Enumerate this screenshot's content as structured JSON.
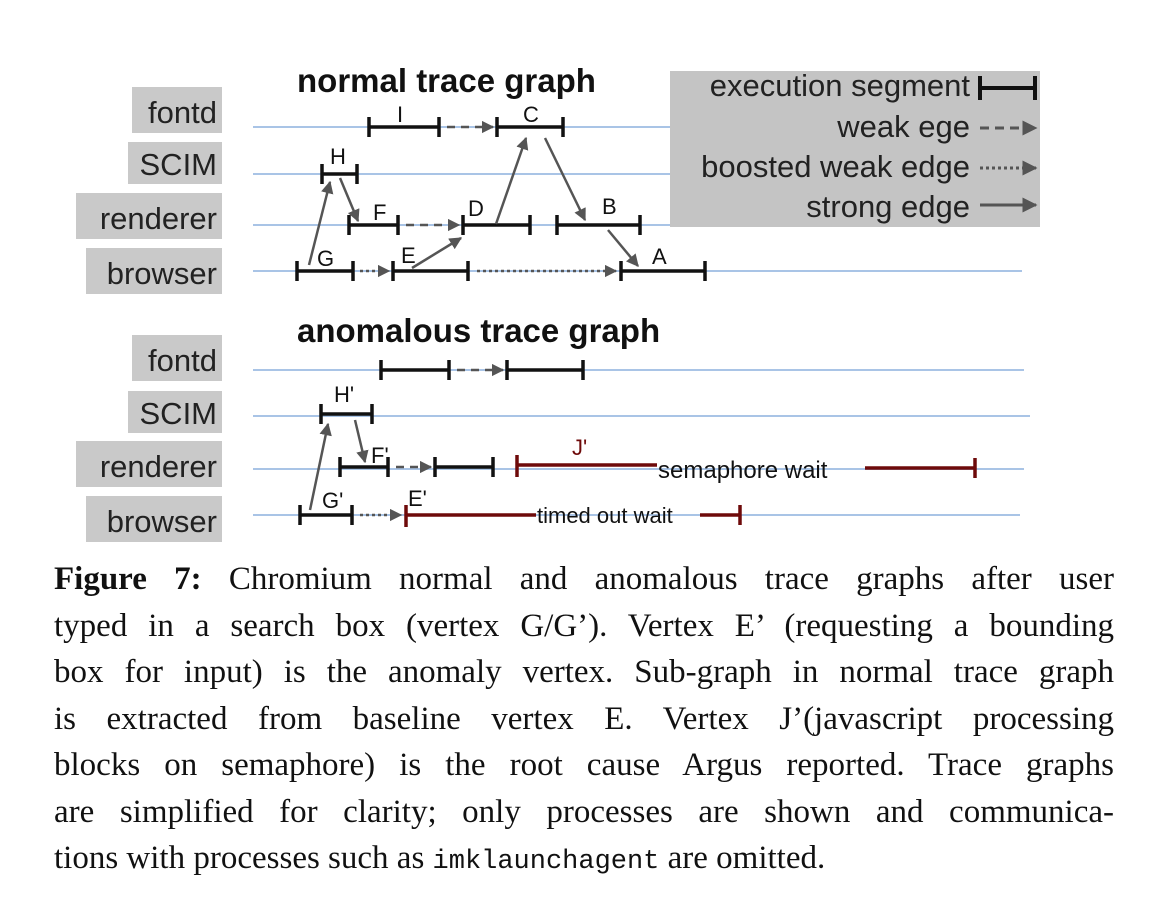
{
  "normal_graph": {
    "title": "normal trace graph",
    "processes": [
      "fontd",
      "SCIM",
      "renderer",
      "browser"
    ],
    "vertices": [
      "I",
      "C",
      "H",
      "F",
      "D",
      "B",
      "G",
      "E",
      "A"
    ]
  },
  "anomalous_graph": {
    "title": "anomalous trace graph",
    "processes": [
      "fontd",
      "SCIM",
      "renderer",
      "browser"
    ],
    "vertices": [
      "H'",
      "F'",
      "J'",
      "G'",
      "E'"
    ],
    "wait_labels": {
      "semaphore": "semaphore wait",
      "timed_out": "timed out wait"
    }
  },
  "legend": {
    "execution_segment": "execution segment",
    "weak_edge": "weak ege",
    "boosted_weak_edge": "boosted weak edge",
    "strong_edge": "strong edge"
  },
  "caption": {
    "label": "Figure 7:",
    "lines": [
      " Chromium normal and anomalous trace graphs after user",
      "typed in a search box (vertex G/G’). Vertex E’ (requesting a bounding",
      "box for input) is the anomaly vertex. Sub-graph in normal trace graph",
      "is extracted from baseline vertex E. Vertex J’(javascript processing",
      "blocks on semaphore) is the root cause Argus reported. Trace graphs",
      "are simplified for clarity; only processes are shown and communica-"
    ],
    "last_line_pre": "tions with processes such as ",
    "last_line_code": "imklaunchagent",
    "last_line_post": " are omitted."
  },
  "colors": {
    "timeline": "#a9c4e6",
    "label_bg": "#c9c9c9",
    "legend_bg": "#c4c4c4",
    "segment": "#111111",
    "edge": "#555555",
    "anomaly": "#6e0a0a"
  }
}
